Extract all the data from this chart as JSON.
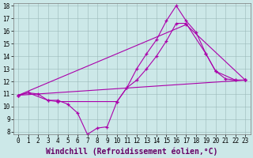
{
  "bg_color": "#cce8e8",
  "line_color": "#aa00aa",
  "xlim": [
    -0.5,
    23.5
  ],
  "ylim": [
    7.8,
    18.2
  ],
  "yticks": [
    8,
    9,
    10,
    11,
    12,
    13,
    14,
    15,
    16,
    17,
    18
  ],
  "xticks": [
    0,
    1,
    2,
    3,
    4,
    5,
    6,
    7,
    8,
    9,
    10,
    11,
    12,
    13,
    14,
    15,
    16,
    17,
    18,
    19,
    20,
    21,
    22,
    23
  ],
  "series1": {
    "x": [
      0,
      1,
      2,
      3,
      4,
      5,
      6,
      7,
      8,
      9,
      10,
      11,
      12,
      13,
      14,
      15,
      16,
      17,
      18,
      19,
      20,
      21,
      22,
      23
    ],
    "y": [
      10.9,
      11.1,
      11.0,
      10.5,
      10.5,
      10.2,
      9.5,
      7.8,
      8.3,
      8.4,
      10.4,
      11.5,
      13.0,
      14.2,
      15.3,
      16.8,
      18.0,
      16.8,
      15.9,
      14.2,
      12.8,
      12.2,
      12.1,
      12.1
    ]
  },
  "series2": {
    "x": [
      0,
      1,
      3,
      4,
      10,
      11,
      12,
      13,
      14,
      15,
      16,
      17,
      19,
      20,
      22,
      23
    ],
    "y": [
      10.9,
      11.1,
      10.5,
      10.4,
      10.4,
      11.5,
      12.1,
      13.0,
      14.0,
      15.2,
      16.6,
      16.6,
      14.2,
      12.8,
      12.1,
      12.1
    ]
  },
  "series3_x": [
    0,
    23
  ],
  "series3_y": [
    10.9,
    12.1
  ],
  "series4_x": [
    0,
    17,
    23
  ],
  "series4_y": [
    10.9,
    16.5,
    12.1
  ],
  "xlabel": "Windchill (Refroidissement éolien,°C)",
  "grid_color": "#9ab8b8",
  "tick_fontsize": 5.5,
  "xlabel_fontsize": 7.0
}
